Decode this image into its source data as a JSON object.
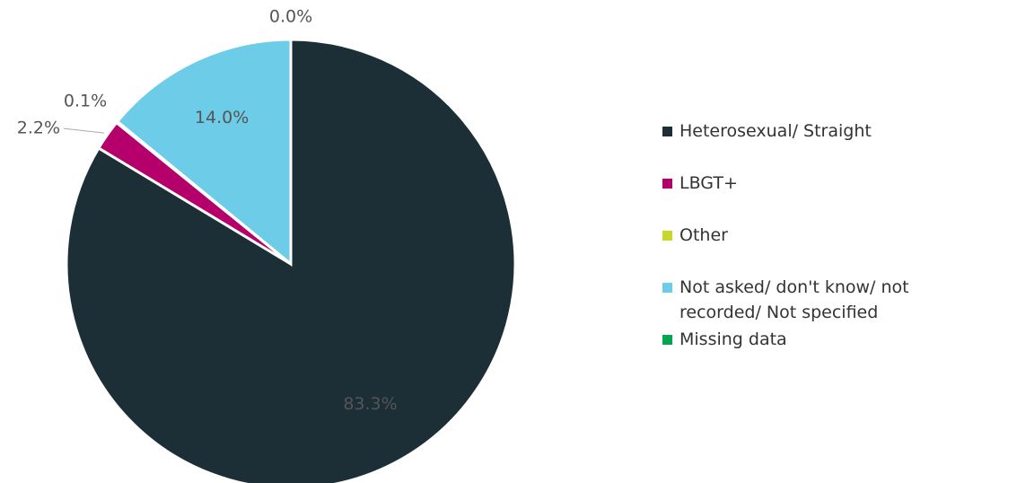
{
  "chart_data": {
    "type": "pie",
    "categories": [
      "Heterosexual/ Straight",
      "LBGT+",
      "Other",
      "Not asked/ don't know/ not recorded/ Not specified",
      "Missing data"
    ],
    "values": [
      83.3,
      2.2,
      0.1,
      14,
      0
    ],
    "value_labels": [
      "83.3%",
      "2.2%",
      "0.1%",
      "14.0%",
      "0.0%"
    ],
    "colors": [
      "#1c2e36",
      "#b5006b",
      "#c8d82a",
      "#6dcde8",
      "#00a651"
    ],
    "legend": "right"
  }
}
